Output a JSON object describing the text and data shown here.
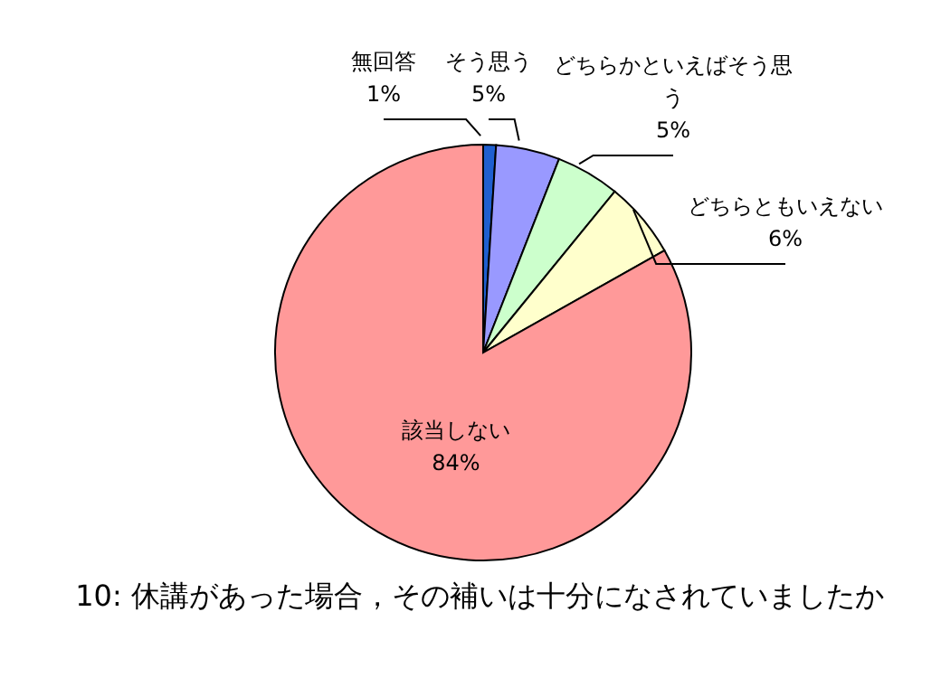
{
  "chart_data": {
    "type": "pie",
    "title": "10: 休講があった場合，その補いは十分になされていましたか",
    "categories": [
      "無回答",
      "そう思う",
      "どちらかといえばそう思う",
      "どちらともいえない",
      "該当しない"
    ],
    "values": [
      1,
      5,
      5,
      6,
      84
    ],
    "colors": [
      "#1f5fd0",
      "#9999ff",
      "#ccffcc",
      "#ffffcc",
      "#ff9999"
    ],
    "data_labels": true,
    "value_labels": [
      "1%",
      "5%",
      "5%",
      "6%",
      "84%"
    ]
  }
}
